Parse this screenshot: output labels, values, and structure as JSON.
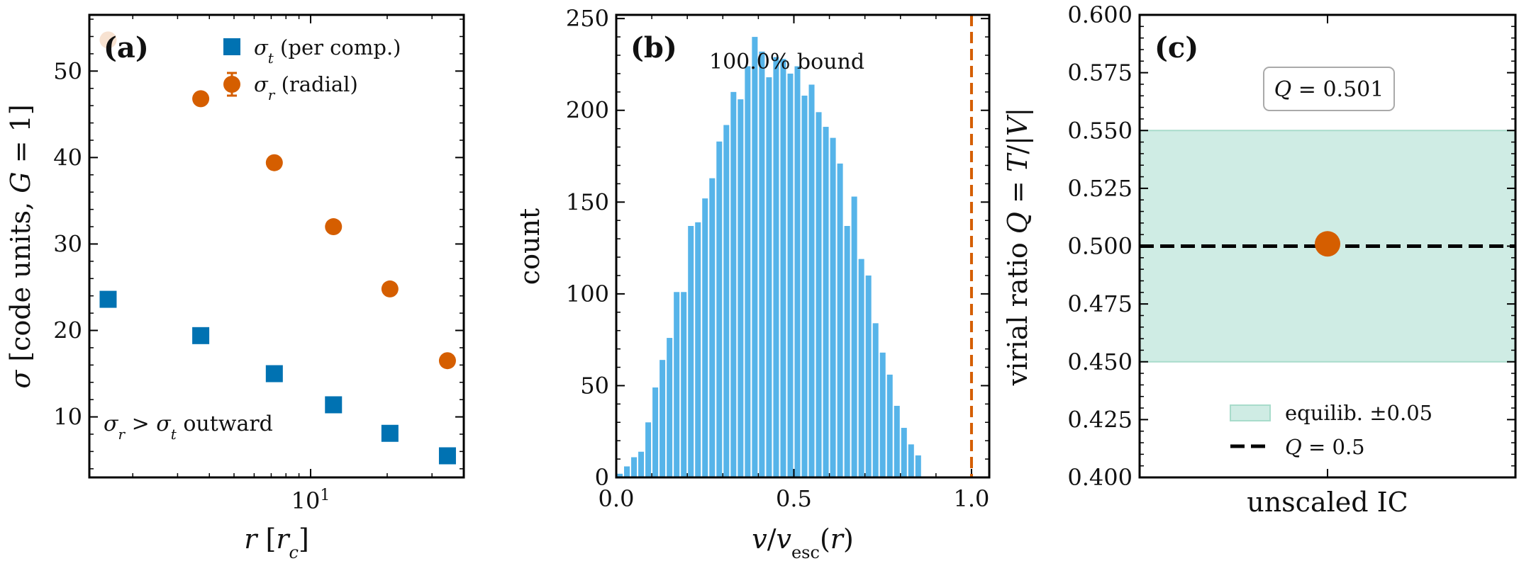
{
  "chart_data": [
    {
      "panel": "(a)",
      "type": "scatter",
      "xscale": "log",
      "xlim": [
        1.35,
        40
      ],
      "ylim": [
        3,
        56.5
      ],
      "xlabel": "r [r_c]",
      "ylabel": "σ [code units, G = 1]",
      "xtick_labels": [
        "10^1"
      ],
      "ytick_labels": [
        "10",
        "20",
        "30",
        "40",
        "50"
      ],
      "annotation": "σ_r > σ_t outward",
      "legend_position": "top-right",
      "series": [
        {
          "name": "σ_t (per comp.)",
          "marker": "square",
          "color": "#0072b2",
          "x": [
            1.6,
            3.7,
            7.2,
            12.3,
            20.5,
            34.5
          ],
          "y": [
            23.6,
            19.4,
            15.0,
            11.4,
            8.1,
            5.5
          ]
        },
        {
          "name": "σ_r (radial)",
          "marker": "circle",
          "color": "#d55e00",
          "x": [
            1.6,
            3.7,
            7.2,
            12.3,
            20.5,
            34.5
          ],
          "y": [
            53.6,
            46.8,
            39.4,
            32.0,
            24.8,
            16.5
          ]
        }
      ]
    },
    {
      "panel": "(b)",
      "type": "bar",
      "subtype": "histogram",
      "xlim": [
        0,
        1.05
      ],
      "ylim": [
        0,
        252
      ],
      "xlabel": "v / v_esc(r)",
      "ylabel": "count",
      "xtick_labels": [
        "0.0",
        "0.5",
        "1.0"
      ],
      "ytick_labels": [
        "0",
        "50",
        "100",
        "150",
        "200",
        "250"
      ],
      "annotation": "100.0% bound",
      "bar_color": "#56b4e9",
      "reference_line": {
        "x": 1.0,
        "color": "#d55e00",
        "style": "dashed"
      },
      "bin_width": 0.02,
      "bin_start": 0.0,
      "values": [
        2,
        6,
        11,
        14,
        30,
        49,
        64,
        76,
        101,
        101,
        137,
        139,
        152,
        163,
        183,
        192,
        210,
        206,
        224,
        240,
        232,
        218,
        229,
        228,
        220,
        224,
        208,
        214,
        199,
        191,
        185,
        171,
        137,
        153,
        119,
        110,
        84,
        68,
        56,
        39,
        27,
        18,
        12
      ]
    },
    {
      "panel": "(c)",
      "type": "scatter",
      "ylim": [
        0.4,
        0.6
      ],
      "ylabel": "virial ratio Q = T / |V|",
      "xtick_labels": [
        "unscaled IC"
      ],
      "ytick_labels": [
        "0.400",
        "0.425",
        "0.450",
        "0.475",
        "0.500",
        "0.525",
        "0.550",
        "0.575",
        "0.600"
      ],
      "annotation": "Q = 0.501",
      "legend_position": "lower-center",
      "band": {
        "name": "equilib. ±0.05",
        "y": [
          0.45,
          0.55
        ],
        "color": "#cfece4"
      },
      "reference_line": {
        "name": "Q = 0.5",
        "y": 0.5,
        "color": "#000000",
        "style": "dashed"
      },
      "point": {
        "x": 0,
        "y": 0.501,
        "color": "#d55e00"
      }
    }
  ]
}
